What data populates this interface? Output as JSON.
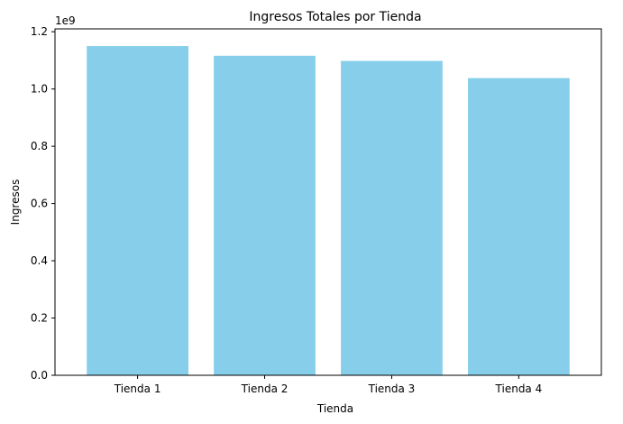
{
  "chart_data": {
    "type": "bar",
    "title": "Ingresos Totales por Tienda",
    "xlabel": "Tienda",
    "ylabel": "Ingresos",
    "categories": [
      "Tienda 1",
      "Tienda 2",
      "Tienda 3",
      "Tienda 4"
    ],
    "values": [
      1150000000,
      1116000000,
      1098000000,
      1038000000
    ],
    "ylim": [
      0,
      1210000000
    ],
    "yticks": [
      0,
      200000000,
      400000000,
      600000000,
      800000000,
      1000000000,
      1200000000
    ],
    "ytick_labels": [
      "0.0",
      "0.2",
      "0.4",
      "0.6",
      "0.8",
      "1.0",
      "1.2"
    ],
    "y_offset_label": "1e9",
    "bar_color": "#87CEEB",
    "grid": false,
    "legend": "none"
  }
}
